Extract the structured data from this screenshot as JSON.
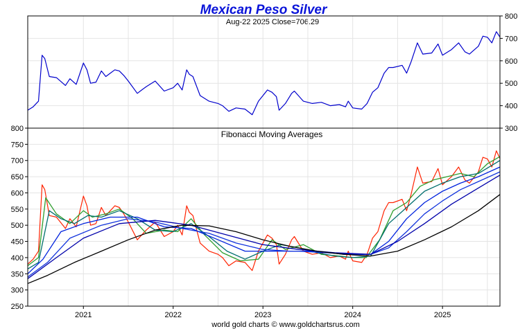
{
  "chart_data": [
    {
      "type": "line",
      "panel": "top",
      "title": "Mexican Peso Silver",
      "subtitle": "Aug-22  2025   Close=706.29",
      "date": "Aug-22  2025",
      "close": 706.29,
      "ylim": [
        300,
        800
      ],
      "y_ticks": [
        300,
        400,
        500,
        600,
        700,
        800
      ],
      "y_tick_labels": [
        "300",
        "400",
        "500",
        "600",
        "700",
        "800"
      ],
      "y_axis_side": "right",
      "x_range": [
        2020.38,
        2025.64
      ],
      "grid": true,
      "series": [
        {
          "color": "#0000cc",
          "x": [
            2020.38,
            2020.44,
            2020.5,
            2020.54,
            2020.57,
            2020.62,
            2020.7,
            2020.8,
            2020.85,
            2020.92,
            2021.0,
            2021.04,
            2021.08,
            2021.14,
            2021.2,
            2021.25,
            2021.3,
            2021.35,
            2021.4,
            2021.45,
            2021.5,
            2021.6,
            2021.65,
            2021.7,
            2021.8,
            2021.9,
            2022.0,
            2022.05,
            2022.1,
            2022.15,
            2022.18,
            2022.22,
            2022.3,
            2022.4,
            2022.5,
            2022.55,
            2022.62,
            2022.7,
            2022.8,
            2022.88,
            2022.95,
            2023.0,
            2023.05,
            2023.1,
            2023.15,
            2023.18,
            2023.25,
            2023.32,
            2023.35,
            2023.45,
            2023.55,
            2023.65,
            2023.75,
            2023.85,
            2023.92,
            2023.95,
            2024.0,
            2024.1,
            2024.16,
            2024.22,
            2024.28,
            2024.35,
            2024.4,
            2024.45,
            2024.55,
            2024.6,
            2024.65,
            2024.72,
            2024.78,
            2024.88,
            2024.95,
            2025.0,
            2025.1,
            2025.18,
            2025.25,
            2025.3,
            2025.4,
            2025.45,
            2025.5,
            2025.55,
            2025.6,
            2025.64
          ],
          "values": [
            380,
            395,
            420,
            625,
            610,
            530,
            525,
            490,
            520,
            495,
            590,
            560,
            500,
            505,
            555,
            530,
            545,
            560,
            555,
            535,
            510,
            455,
            470,
            485,
            510,
            465,
            480,
            500,
            470,
            560,
            540,
            530,
            445,
            420,
            410,
            400,
            375,
            390,
            385,
            360,
            420,
            445,
            470,
            460,
            440,
            380,
            410,
            455,
            465,
            420,
            410,
            415,
            400,
            405,
            395,
            420,
            390,
            385,
            410,
            460,
            480,
            545,
            570,
            570,
            580,
            545,
            595,
            680,
            630,
            635,
            675,
            625,
            650,
            680,
            640,
            630,
            665,
            710,
            705,
            680,
            730,
            706
          ]
        }
      ]
    },
    {
      "type": "line",
      "panel": "bottom",
      "title": "Fibonacci Moving Averages",
      "ylim": [
        250,
        800
      ],
      "y_ticks": [
        250,
        300,
        350,
        400,
        450,
        500,
        550,
        600,
        650,
        700,
        750,
        800
      ],
      "y_tick_labels": [
        "250",
        "300",
        "350",
        "400",
        "450",
        "500",
        "550",
        "600",
        "650",
        "700",
        "750",
        "800"
      ],
      "y_axis_side": "left",
      "x_range": [
        2020.38,
        2025.64
      ],
      "x_ticks": [
        2021,
        2022,
        2023,
        2024,
        2025
      ],
      "x_tick_labels": [
        "2021",
        "2022",
        "2023",
        "2024",
        "2025"
      ],
      "grid": true,
      "series": [
        {
          "color": "#ff2200",
          "x": [
            2020.38,
            2020.44,
            2020.5,
            2020.54,
            2020.57,
            2020.62,
            2020.7,
            2020.8,
            2020.85,
            2020.92,
            2021.0,
            2021.04,
            2021.08,
            2021.14,
            2021.2,
            2021.25,
            2021.3,
            2021.35,
            2021.4,
            2021.45,
            2021.5,
            2021.6,
            2021.65,
            2021.7,
            2021.8,
            2021.9,
            2022.0,
            2022.05,
            2022.1,
            2022.15,
            2022.18,
            2022.22,
            2022.3,
            2022.4,
            2022.5,
            2022.55,
            2022.62,
            2022.7,
            2022.8,
            2022.88,
            2022.95,
            2023.0,
            2023.05,
            2023.1,
            2023.15,
            2023.18,
            2023.25,
            2023.32,
            2023.35,
            2023.45,
            2023.55,
            2023.65,
            2023.75,
            2023.85,
            2023.92,
            2023.95,
            2024.0,
            2024.1,
            2024.16,
            2024.22,
            2024.28,
            2024.35,
            2024.4,
            2024.45,
            2024.55,
            2024.6,
            2024.65,
            2024.72,
            2024.78,
            2024.88,
            2024.95,
            2025.0,
            2025.1,
            2025.18,
            2025.25,
            2025.3,
            2025.4,
            2025.45,
            2025.5,
            2025.55,
            2025.6,
            2025.64
          ],
          "values": [
            380,
            395,
            420,
            625,
            610,
            530,
            525,
            490,
            520,
            495,
            590,
            560,
            500,
            505,
            555,
            530,
            545,
            560,
            555,
            535,
            510,
            455,
            470,
            485,
            510,
            465,
            480,
            500,
            470,
            560,
            540,
            530,
            445,
            420,
            410,
            400,
            375,
            390,
            385,
            360,
            420,
            445,
            470,
            460,
            440,
            380,
            410,
            455,
            465,
            420,
            410,
            415,
            400,
            405,
            395,
            420,
            390,
            385,
            410,
            460,
            480,
            545,
            570,
            570,
            580,
            545,
            595,
            680,
            630,
            635,
            675,
            625,
            650,
            680,
            640,
            630,
            665,
            710,
            705,
            680,
            730,
            706
          ]
        },
        {
          "color": "#2e9e2e",
          "x": [
            2020.38,
            2020.5,
            2020.58,
            2020.7,
            2020.85,
            2021.0,
            2021.1,
            2021.25,
            2021.4,
            2021.55,
            2021.7,
            2021.9,
            2022.05,
            2022.2,
            2022.35,
            2022.55,
            2022.75,
            2022.95,
            2023.1,
            2023.25,
            2023.45,
            2023.65,
            2023.85,
            2024.0,
            2024.15,
            2024.3,
            2024.45,
            2024.6,
            2024.75,
            2024.9,
            2025.05,
            2025.2,
            2025.35,
            2025.5,
            2025.64
          ],
          "values": [
            375,
            400,
            585,
            535,
            505,
            545,
            525,
            535,
            550,
            520,
            475,
            485,
            480,
            520,
            470,
            415,
            390,
            395,
            455,
            425,
            440,
            410,
            405,
            400,
            400,
            455,
            545,
            570,
            620,
            640,
            650,
            660,
            650,
            690,
            712
          ]
        },
        {
          "color": "#006e6e",
          "x": [
            2020.38,
            2020.5,
            2020.62,
            2020.75,
            2020.9,
            2021.05,
            2021.2,
            2021.4,
            2021.6,
            2021.8,
            2022.0,
            2022.2,
            2022.4,
            2022.6,
            2022.8,
            2023.0,
            2023.2,
            2023.4,
            2023.6,
            2023.8,
            2024.0,
            2024.2,
            2024.4,
            2024.6,
            2024.8,
            2025.0,
            2025.2,
            2025.4,
            2025.64
          ],
          "values": [
            365,
            385,
            545,
            520,
            505,
            530,
            525,
            545,
            520,
            485,
            480,
            505,
            465,
            420,
            395,
            420,
            440,
            430,
            415,
            405,
            400,
            405,
            505,
            555,
            605,
            630,
            650,
            660,
            700
          ]
        },
        {
          "color": "#0022dd",
          "x": [
            2020.38,
            2020.55,
            2020.75,
            2021.0,
            2021.3,
            2021.6,
            2021.9,
            2022.2,
            2022.5,
            2022.8,
            2023.1,
            2023.4,
            2023.7,
            2024.0,
            2024.2,
            2024.4,
            2024.6,
            2024.8,
            2025.0,
            2025.2,
            2025.4,
            2025.64
          ],
          "values": [
            350,
            395,
            480,
            505,
            525,
            525,
            495,
            490,
            455,
            420,
            420,
            420,
            415,
            410,
            410,
            450,
            520,
            570,
            605,
            630,
            650,
            680
          ]
        },
        {
          "color": "#1133dd",
          "x": [
            2020.38,
            2020.6,
            2020.85,
            2021.2,
            2021.5,
            2021.8,
            2022.1,
            2022.4,
            2022.7,
            2023.0,
            2023.3,
            2023.6,
            2023.9,
            2024.2,
            2024.4,
            2024.6,
            2024.8,
            2025.0,
            2025.2,
            2025.4,
            2025.64
          ],
          "values": [
            340,
            385,
            460,
            500,
            520,
            510,
            490,
            475,
            445,
            425,
            420,
            420,
            410,
            410,
            430,
            480,
            535,
            575,
            610,
            635,
            665
          ]
        },
        {
          "color": "#0000aa",
          "x": [
            2020.38,
            2020.7,
            2021.0,
            2021.4,
            2021.8,
            2022.2,
            2022.6,
            2023.0,
            2023.4,
            2023.8,
            2024.2,
            2024.5,
            2024.8,
            2025.1,
            2025.4,
            2025.64
          ],
          "values": [
            335,
            400,
            460,
            505,
            515,
            500,
            470,
            440,
            425,
            415,
            410,
            450,
            505,
            565,
            615,
            655
          ]
        },
        {
          "color": "#000000",
          "x": [
            2020.38,
            2020.6,
            2020.9,
            2021.2,
            2021.5,
            2021.8,
            2022.1,
            2022.4,
            2022.7,
            2023.0,
            2023.3,
            2023.6,
            2023.9,
            2024.2,
            2024.5,
            2024.8,
            2025.1,
            2025.4,
            2025.64
          ],
          "values": [
            320,
            345,
            385,
            420,
            455,
            485,
            500,
            498,
            480,
            455,
            435,
            420,
            410,
            405,
            420,
            455,
            495,
            545,
            595
          ]
        }
      ]
    }
  ],
  "footer": "world gold charts © www.goldchartsrus.com"
}
